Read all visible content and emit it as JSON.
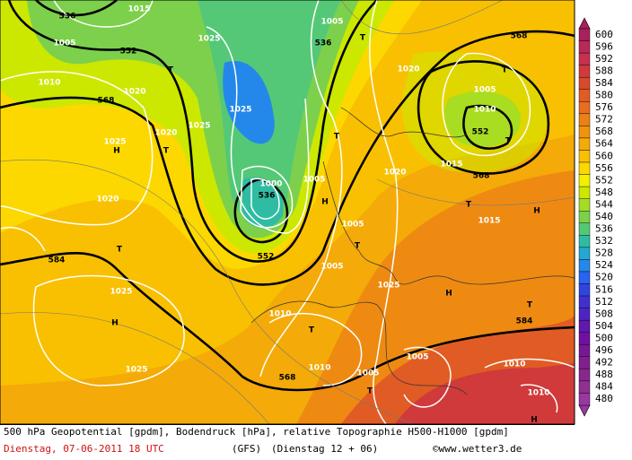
{
  "caption": {
    "line1": "500 hPa Geopotential [gpdm], Bodendruck [hPa], relative Topographie H500-H1000 [gpdm]",
    "date": "Dienstag, 07-06-2011  18 UTC",
    "model": "(GFS)",
    "run": "(Dienstag 12 + 06)",
    "source": "©www.wetter3.de"
  },
  "legend": {
    "values": [
      600,
      596,
      592,
      588,
      584,
      580,
      576,
      572,
      568,
      564,
      560,
      556,
      552,
      548,
      544,
      540,
      536,
      532,
      528,
      524,
      520,
      516,
      512,
      508,
      504,
      500,
      496,
      492,
      488,
      484,
      480
    ],
    "colors": [
      "#a8205c",
      "#b82858",
      "#c83050",
      "#d03a3a",
      "#d84a2c",
      "#e05c24",
      "#e66e1c",
      "#ec8014",
      "#f0940e",
      "#f4aa08",
      "#f8c000",
      "#fcd800",
      "#f4ee00",
      "#cce800",
      "#a4dc24",
      "#7cd04c",
      "#54c876",
      "#30bca2",
      "#22a8d2",
      "#2488ea",
      "#2864f0",
      "#3044e0",
      "#4030d0",
      "#5024c0",
      "#6018b0",
      "#7010a0",
      "#781894",
      "#80208e",
      "#88288e",
      "#903090",
      "#9838a0"
    ]
  },
  "map_labels": [
    "536",
    "1015",
    "1005",
    "552",
    "1010",
    "1020",
    "568",
    "1025",
    "H",
    "1020",
    "T",
    "1025",
    "1025",
    "1025",
    "T",
    "1005",
    "536",
    "T",
    "1020",
    "568",
    "T",
    "1005",
    "1010",
    "552",
    "T",
    "1015",
    "568",
    "1000",
    "536",
    "1005",
    "H",
    "T",
    "552",
    "1005",
    "T",
    "1005",
    "T",
    "1015",
    "H",
    "1020",
    "T",
    "584",
    "1025",
    "H",
    "1010",
    "T",
    "1025",
    "H",
    "T",
    "584",
    "1010",
    "568",
    "1025",
    "1005",
    "1005",
    "T",
    "1010",
    "1010",
    "H",
    "1020"
  ]
}
